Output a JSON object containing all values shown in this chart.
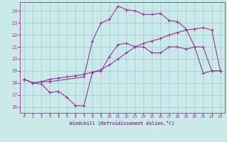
{
  "xlabel": "Windchill (Refroidissement éolien,°C)",
  "bg_color": "#caeaea",
  "grid_color": "#aad4d4",
  "line_color": "#993399",
  "spine_color": "#993399",
  "xlim": [
    -0.5,
    23.5
  ],
  "ylim": [
    15.5,
    24.7
  ],
  "yticks": [
    16,
    17,
    18,
    19,
    20,
    21,
    22,
    23,
    24
  ],
  "xticks": [
    0,
    1,
    2,
    3,
    4,
    5,
    6,
    7,
    8,
    9,
    10,
    11,
    12,
    13,
    14,
    15,
    16,
    17,
    18,
    19,
    20,
    21,
    22,
    23
  ],
  "series": [
    {
      "x": [
        0,
        1,
        2,
        3,
        4,
        5,
        6,
        7,
        8,
        9,
        10,
        11,
        12,
        13,
        14,
        15,
        16,
        17,
        18,
        19,
        20,
        21,
        22,
        23
      ],
      "y": [
        18.3,
        18.0,
        17.9,
        17.2,
        17.3,
        16.8,
        16.1,
        16.1,
        18.9,
        19.0,
        20.2,
        21.2,
        21.3,
        21.0,
        21.0,
        20.5,
        20.5,
        21.0,
        21.0,
        20.8,
        21.0,
        18.8,
        19.0,
        19.0
      ]
    },
    {
      "x": [
        0,
        1,
        2,
        3,
        4,
        5,
        6,
        7,
        8,
        9,
        10,
        11,
        12,
        13,
        14,
        15,
        16,
        17,
        18,
        19,
        20,
        21,
        22,
        23
      ],
      "y": [
        18.3,
        18.0,
        18.1,
        18.3,
        18.4,
        18.5,
        18.6,
        18.7,
        18.9,
        19.1,
        19.5,
        20.0,
        20.5,
        21.0,
        21.3,
        21.5,
        21.7,
        22.0,
        22.2,
        22.4,
        22.5,
        22.6,
        22.4,
        19.0
      ]
    },
    {
      "x": [
        0,
        1,
        2,
        3,
        7,
        8,
        9,
        10,
        11,
        12,
        13,
        14,
        15,
        16,
        17,
        18,
        19,
        20,
        21,
        22,
        23
      ],
      "y": [
        18.3,
        18.0,
        18.1,
        18.1,
        18.5,
        21.5,
        23.0,
        23.3,
        24.4,
        24.1,
        24.0,
        23.7,
        23.7,
        23.8,
        23.2,
        23.1,
        22.5,
        21.0,
        21.0,
        19.0,
        19.0
      ]
    }
  ]
}
